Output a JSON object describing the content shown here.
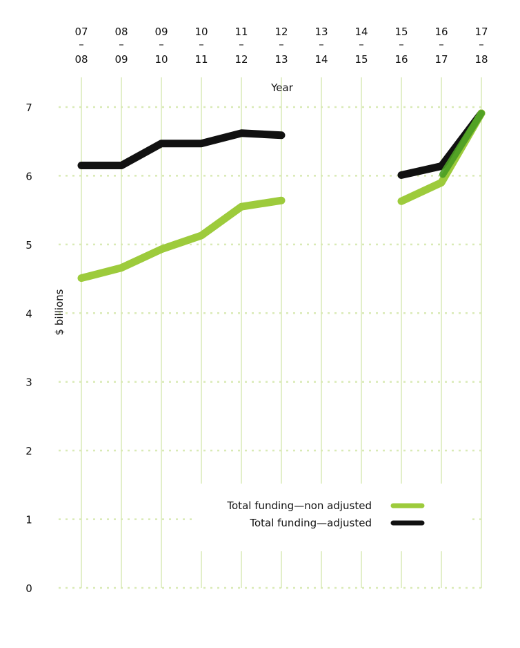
{
  "chart_data": {
    "type": "line",
    "title": "",
    "xlabel": "Year",
    "ylabel": "$ billions",
    "categories": [
      [
        "07",
        "08"
      ],
      [
        "08",
        "09"
      ],
      [
        "09",
        "10"
      ],
      [
        "10",
        "11"
      ],
      [
        "11",
        "12"
      ],
      [
        "12",
        "13"
      ],
      [
        "13",
        "14"
      ],
      [
        "14",
        "15"
      ],
      [
        "15",
        "16"
      ],
      [
        "16",
        "17"
      ],
      [
        "17",
        "18"
      ]
    ],
    "separator": "–",
    "ylim": [
      0,
      7
    ],
    "yticks": [
      "0",
      "1",
      "2",
      "3",
      "4",
      "5",
      "6",
      "7"
    ],
    "grid": true,
    "legend_position": "bottom-right",
    "series": [
      {
        "name": "Total funding—adjusted",
        "color": "#111111",
        "values": [
          6.15,
          6.15,
          6.47,
          6.47,
          6.62,
          6.59,
          null,
          null,
          6.01,
          6.14,
          6.91
        ]
      },
      {
        "name": "Total funding—non adjusted",
        "color": "#9dcb3c",
        "values": [
          4.51,
          4.66,
          4.93,
          5.13,
          5.55,
          5.64,
          null,
          null,
          5.63,
          5.9,
          6.91
        ]
      }
    ],
    "overlap_color": "#4a9e23",
    "grid_color": "#d9eab5"
  }
}
